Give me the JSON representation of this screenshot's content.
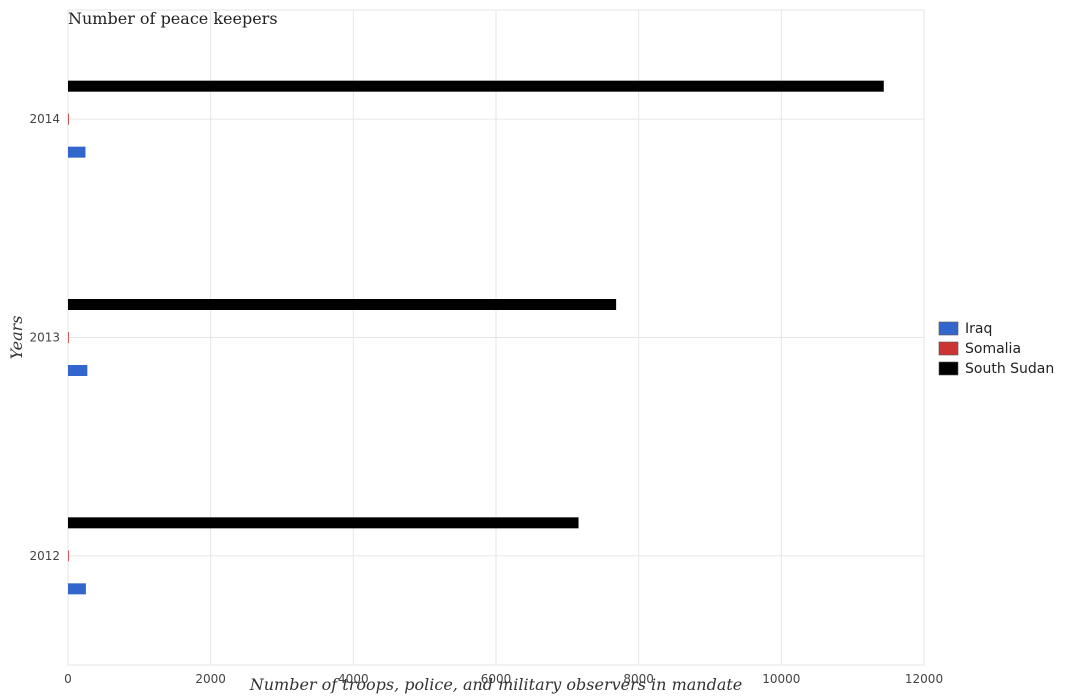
{
  "chart_data": {
    "type": "bar",
    "orientation": "horizontal",
    "title": "Number of peace keepers",
    "xlabel": "Number of troops, police, and military observers in mandate",
    "ylabel": "Years",
    "categories": [
      "2012",
      "2013",
      "2014"
    ],
    "series": [
      {
        "name": "Iraq",
        "color": "#3366cc",
        "values": [
          251,
          271,
          245
        ]
      },
      {
        "name": "Somalia",
        "color": "#cc3333",
        "values": [
          3,
          9,
          12
        ]
      },
      {
        "name": "South Sudan",
        "color": "#000000",
        "values": [
          7157,
          7684,
          11436
        ]
      }
    ],
    "xlim": [
      0,
      12000
    ],
    "xticks": [
      0,
      2000,
      4000,
      6000,
      8000,
      10000,
      12000
    ],
    "xtick_labels": [
      "0",
      "2000",
      "4000",
      "6000",
      "8000",
      "10000",
      "12000"
    ],
    "grid": true,
    "legend_position": "right"
  }
}
